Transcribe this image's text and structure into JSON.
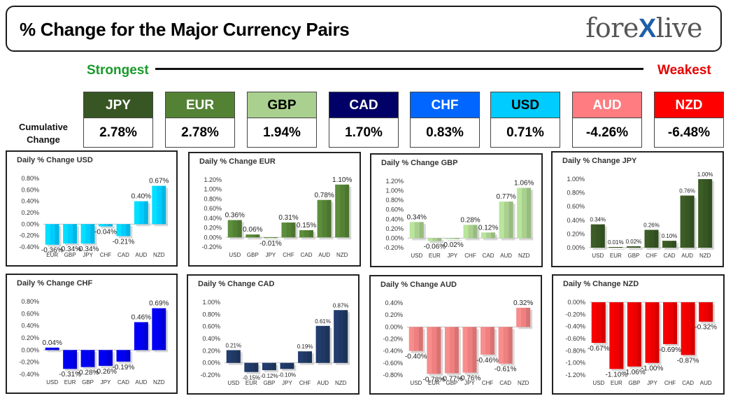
{
  "header": {
    "title": "% Change for the Major Currency Pairs",
    "logo": {
      "left": "fore",
      "x": "X",
      "right": "live"
    }
  },
  "ranking": {
    "strongest": "Strongest",
    "weakest": "Weakest",
    "cumulative_label_1": "Cumulative",
    "cumulative_label_2": "Change",
    "currencies": [
      {
        "code": "JPY",
        "value": "2.78%",
        "bg": "#375623",
        "fg": "#ffffff"
      },
      {
        "code": "EUR",
        "value": "2.78%",
        "bg": "#548235",
        "fg": "#ffffff"
      },
      {
        "code": "GBP",
        "value": "1.94%",
        "bg": "#a9d08e",
        "fg": "#000000"
      },
      {
        "code": "CAD",
        "value": "1.70%",
        "bg": "#000066",
        "fg": "#ffffff"
      },
      {
        "code": "CHF",
        "value": "0.83%",
        "bg": "#0066ff",
        "fg": "#ffffff"
      },
      {
        "code": "USD",
        "value": "0.71%",
        "bg": "#00ccff",
        "fg": "#000000"
      },
      {
        "code": "AUD",
        "value": "-4.26%",
        "bg": "#ff7c80",
        "fg": "#ffffff"
      },
      {
        "code": "NZD",
        "value": "-6.48%",
        "bg": "#ff0000",
        "fg": "#ffffff"
      }
    ]
  },
  "chart_data": [
    {
      "type": "bar",
      "title": "Daily % Change USD",
      "categories": [
        "EUR",
        "GBP",
        "JPY",
        "CHF",
        "CAD",
        "AUD",
        "NZD"
      ],
      "values": [
        -0.36,
        -0.34,
        -0.34,
        -0.04,
        -0.21,
        0.4,
        0.67
      ],
      "labels": [
        "-0.36%",
        "-0.34%",
        "-0.34%",
        "-0.04%",
        "-0.21%",
        "0.40%",
        "0.67%"
      ],
      "ylim": [
        -0.4,
        0.8
      ],
      "ticks": [
        "-0.40%",
        "-0.20%",
        "0.00%",
        "0.20%",
        "0.40%",
        "0.60%",
        "0.80%"
      ],
      "tick_step": 0.2,
      "color": "#00ccff"
    },
    {
      "type": "bar",
      "title": "Daily % Change EUR",
      "categories": [
        "USD",
        "GBP",
        "JPY",
        "CHF",
        "CAD",
        "AUD",
        "NZD"
      ],
      "values": [
        0.36,
        0.06,
        -0.01,
        0.31,
        0.15,
        0.78,
        1.1
      ],
      "labels": [
        "0.36%",
        "0.06%",
        "-0.01%",
        "0.31%",
        "0.15%",
        "0.78%",
        "1.10%"
      ],
      "ylim": [
        -0.2,
        1.2
      ],
      "ticks": [
        "-0.20%",
        "0.00%",
        "0.20%",
        "0.40%",
        "0.60%",
        "0.80%",
        "1.00%",
        "1.20%"
      ],
      "tick_step": 0.2,
      "color": "#548235"
    },
    {
      "type": "bar",
      "title": "Daily % Change GBP",
      "categories": [
        "USD",
        "EUR",
        "JPY",
        "CHF",
        "CAD",
        "AUD",
        "NZD"
      ],
      "values": [
        0.34,
        -0.06,
        -0.02,
        0.28,
        0.12,
        0.77,
        1.06
      ],
      "labels": [
        "0.34%",
        "-0.06%",
        "-0.02%",
        "0.28%",
        "0.12%",
        "0.77%",
        "1.06%"
      ],
      "ylim": [
        -0.2,
        1.2
      ],
      "ticks": [
        "-0.20%",
        "0.00%",
        "0.20%",
        "0.40%",
        "0.60%",
        "0.80%",
        "1.00%",
        "1.20%"
      ],
      "tick_step": 0.2,
      "color": "#a9d08e"
    },
    {
      "type": "bar",
      "title": "Daily % Change JPY",
      "categories": [
        "USD",
        "EUR",
        "GBP",
        "CHF",
        "CAD",
        "AUD",
        "NZD"
      ],
      "values": [
        0.34,
        0.01,
        0.02,
        0.26,
        0.1,
        0.76,
        1.0
      ],
      "labels": [
        "0.34%",
        "0.01%",
        "0.02%",
        "0.26%",
        "0.10%",
        "0.76%",
        "1.00%"
      ],
      "ylim": [
        0.0,
        1.0
      ],
      "ticks": [
        "0.00%",
        "0.20%",
        "0.40%",
        "0.60%",
        "0.80%",
        "1.00%"
      ],
      "tick_step": 0.2,
      "color": "#375623"
    },
    {
      "type": "bar",
      "title": "Daily % Change CHF",
      "categories": [
        "USD",
        "EUR",
        "GBP",
        "JPY",
        "CAD",
        "AUD",
        "NZD"
      ],
      "values": [
        0.04,
        -0.31,
        -0.28,
        -0.26,
        -0.19,
        0.46,
        0.69
      ],
      "labels": [
        "0.04%",
        "-0.31%",
        "-0.28%",
        "-0.26%",
        "-0.19%",
        "0.46%",
        "0.69%"
      ],
      "ylim": [
        -0.4,
        0.8
      ],
      "ticks": [
        "-0.40%",
        "-0.20%",
        "0.00%",
        "0.20%",
        "0.40%",
        "0.60%",
        "0.80%"
      ],
      "tick_step": 0.2,
      "color": "#0000ee"
    },
    {
      "type": "bar",
      "title": "Daily % Change CAD",
      "categories": [
        "USD",
        "EUR",
        "GBP",
        "JPY",
        "CHF",
        "AUD",
        "NZD"
      ],
      "values": [
        0.21,
        -0.15,
        -0.12,
        -0.1,
        0.19,
        0.61,
        0.87
      ],
      "labels": [
        "0.21%",
        "-0.15%",
        "-0.12%",
        "-0.10%",
        "0.19%",
        "0.61%",
        "0.87%"
      ],
      "ylim": [
        -0.2,
        1.0
      ],
      "ticks": [
        "-0.20%",
        "0.00%",
        "0.20%",
        "0.40%",
        "0.60%",
        "0.80%",
        "1.00%"
      ],
      "tick_step": 0.2,
      "color": "#1f3864"
    },
    {
      "type": "bar",
      "title": "Daily % Change AUD",
      "categories": [
        "USD",
        "EUR",
        "GBP",
        "JPY",
        "CHF",
        "CAD",
        "NZD"
      ],
      "values": [
        -0.4,
        -0.78,
        -0.77,
        -0.76,
        -0.46,
        -0.61,
        0.32
      ],
      "labels": [
        "-0.40%",
        "-0.78%",
        "-0.77%",
        "-0.76%",
        "-0.46%",
        "-0.61%",
        "0.32%"
      ],
      "ylim": [
        -0.8,
        0.4
      ],
      "ticks": [
        "-0.80%",
        "-0.60%",
        "-0.40%",
        "-0.20%",
        "0.00%",
        "0.20%",
        "0.40%"
      ],
      "tick_step": 0.2,
      "color": "#f08080"
    },
    {
      "type": "bar",
      "title": "Daily % Change NZD",
      "categories": [
        "USD",
        "EUR",
        "GBP",
        "JPY",
        "CHF",
        "CAD",
        "AUD"
      ],
      "values": [
        -0.67,
        -1.1,
        -1.06,
        -1.0,
        -0.69,
        -0.87,
        -0.32
      ],
      "labels": [
        "-0.67%",
        "-1.10%",
        "-1.06%",
        "-1.00%",
        "-0.69%",
        "-0.87%",
        "-0.32%"
      ],
      "ylim": [
        -1.2,
        0.0
      ],
      "ticks": [
        "-1.20%",
        "-1.00%",
        "-0.80%",
        "-0.60%",
        "-0.40%",
        "-0.20%",
        "0.00%"
      ],
      "tick_step": 0.2,
      "color": "#ee0000"
    }
  ]
}
